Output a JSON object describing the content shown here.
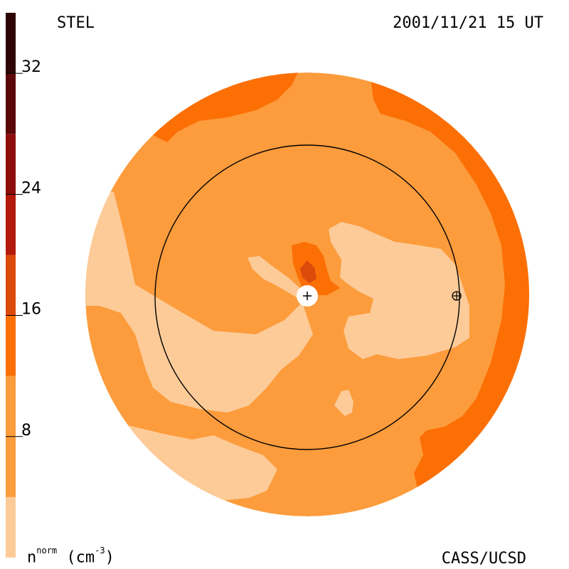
{
  "header": {
    "observatory": "STEL",
    "datetime": "2001/11/21 15 UT"
  },
  "footer": {
    "credit": "CASS/UCSD",
    "colorbar_label_n": "n",
    "colorbar_label_sup": "norm",
    "colorbar_label_unit": "(cm",
    "colorbar_label_exp": "-3",
    "colorbar_label_end": ")"
  },
  "chart_data": {
    "type": "heatmap",
    "title": "",
    "quantity": "n^norm (cm^-3)",
    "colorbar": {
      "min": 0,
      "max": 36,
      "ticks": [
        8,
        16,
        24,
        32
      ],
      "tick_labels": [
        "8",
        "16",
        "24",
        "32"
      ],
      "levels": [
        {
          "from": 0,
          "to": 4,
          "color": "#fdcb98"
        },
        {
          "from": 4,
          "to": 12,
          "color": "#fc9c3c"
        },
        {
          "from": 12,
          "to": 16,
          "color": "#fc6f05"
        },
        {
          "from": 16,
          "to": 20,
          "color": "#dc4a0c"
        },
        {
          "from": 20,
          "to": 24,
          "color": "#b31a0c"
        },
        {
          "from": 24,
          "to": 28,
          "color": "#8c0d0b"
        },
        {
          "from": 28,
          "to": 32,
          "color": "#5c0808"
        },
        {
          "from": 32,
          "to": 36,
          "color": "#2e0505"
        }
      ]
    },
    "markers": [
      "sun",
      "earth"
    ]
  }
}
